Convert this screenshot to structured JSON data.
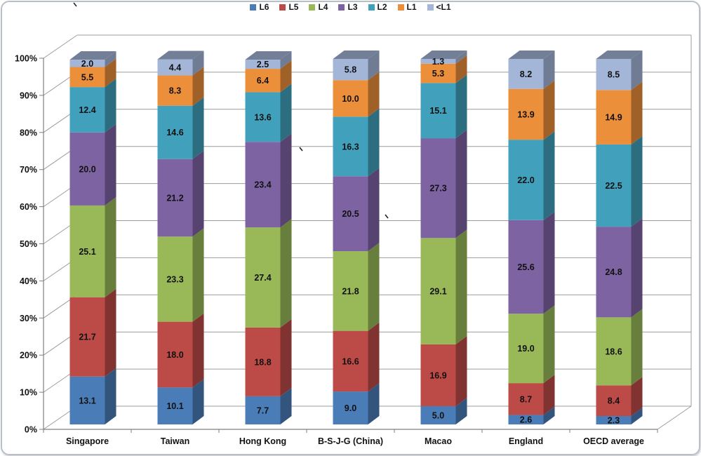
{
  "chart_data": {
    "type": "bar",
    "variant": "3d-stacked-percentage",
    "title": "",
    "xlabel": "",
    "ylabel": "",
    "ylim": [
      0,
      100
    ],
    "grid": true,
    "legend_position": "top",
    "y_ticks": [
      "0%",
      "10%",
      "20%",
      "30%",
      "40%",
      "50%",
      "60%",
      "70%",
      "80%",
      "90%",
      "100%"
    ],
    "categories": [
      "Singapore",
      "Taiwan",
      "Hong Kong",
      "B-S-J-G (China)",
      "Macao",
      "England",
      "OECD average"
    ],
    "series": [
      {
        "name": "L6",
        "color": "#4A7CB8",
        "values": [
          13.1,
          10.1,
          7.7,
          9.0,
          5.0,
          2.6,
          2.3
        ]
      },
      {
        "name": "L5",
        "color": "#BC4B47",
        "values": [
          21.7,
          18.0,
          18.8,
          16.6,
          16.9,
          8.7,
          8.4
        ]
      },
      {
        "name": "L4",
        "color": "#99B958",
        "values": [
          25.1,
          23.3,
          27.4,
          21.8,
          29.1,
          19.0,
          18.6
        ]
      },
      {
        "name": "L3",
        "color": "#7E63A3",
        "values": [
          20.0,
          21.2,
          23.4,
          20.5,
          27.3,
          25.6,
          24.8
        ]
      },
      {
        "name": "L2",
        "color": "#41A0BC",
        "values": [
          12.4,
          14.6,
          13.6,
          16.3,
          15.1,
          22.0,
          22.5
        ]
      },
      {
        "name": "L1",
        "color": "#EC8F3B",
        "values": [
          5.5,
          8.3,
          6.4,
          10.0,
          5.3,
          13.9,
          14.9
        ]
      },
      {
        "name": "<L1",
        "color": "#A3B6D8",
        "values": [
          2.0,
          4.4,
          2.5,
          5.8,
          1.3,
          8.2,
          8.5
        ]
      }
    ]
  }
}
